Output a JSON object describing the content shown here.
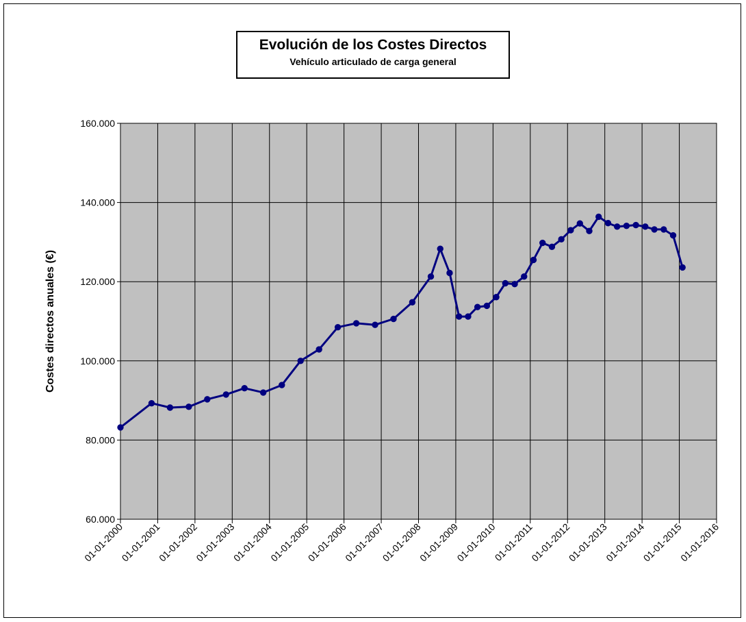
{
  "chart_data": {
    "type": "line",
    "title": "Evolución de los Costes Directos",
    "subtitle": "Vehículo articulado de carga general",
    "xlabel": "",
    "ylabel": "Costes directos anuales (€)",
    "ylim": [
      60000,
      160000
    ],
    "yticks": [
      60000,
      80000,
      100000,
      120000,
      140000,
      160000
    ],
    "ytick_labels": [
      "60.000",
      "80.000",
      "100.000",
      "120.000",
      "140.000",
      "160.000"
    ],
    "xlim": [
      "2000-01-01",
      "2016-01-01"
    ],
    "xtick_labels": [
      "01-01-2000",
      "01-01-2001",
      "01-01-2002",
      "01-01-2003",
      "01-01-2004",
      "01-01-2005",
      "01-01-2006",
      "01-01-2007",
      "01-01-2008",
      "01-01-2009",
      "01-01-2010",
      "01-01-2011",
      "01-01-2012",
      "01-01-2013",
      "01-01-2014",
      "01-01-2015",
      "01-01-2016"
    ],
    "grid": true,
    "series": [
      {
        "color": "#000080",
        "points": [
          {
            "x": "2000-01-01",
            "y": 83200
          },
          {
            "x": "2000-11-01",
            "y": 89300
          },
          {
            "x": "2001-05-01",
            "y": 88200
          },
          {
            "x": "2001-11-01",
            "y": 88400
          },
          {
            "x": "2002-05-01",
            "y": 90300
          },
          {
            "x": "2002-11-01",
            "y": 91500
          },
          {
            "x": "2003-05-01",
            "y": 93100
          },
          {
            "x": "2003-11-01",
            "y": 92000
          },
          {
            "x": "2004-05-01",
            "y": 93900
          },
          {
            "x": "2004-11-01",
            "y": 100000
          },
          {
            "x": "2005-05-01",
            "y": 102900
          },
          {
            "x": "2005-11-01",
            "y": 108500
          },
          {
            "x": "2006-05-01",
            "y": 109500
          },
          {
            "x": "2006-11-01",
            "y": 109100
          },
          {
            "x": "2007-05-01",
            "y": 110600
          },
          {
            "x": "2007-11-01",
            "y": 114800
          },
          {
            "x": "2008-05-01",
            "y": 121300
          },
          {
            "x": "2008-08-01",
            "y": 128300
          },
          {
            "x": "2008-11-01",
            "y": 122200
          },
          {
            "x": "2009-02-01",
            "y": 111200
          },
          {
            "x": "2009-05-01",
            "y": 111200
          },
          {
            "x": "2009-08-01",
            "y": 113600
          },
          {
            "x": "2009-11-01",
            "y": 113900
          },
          {
            "x": "2010-02-01",
            "y": 116100
          },
          {
            "x": "2010-05-01",
            "y": 119600
          },
          {
            "x": "2010-08-01",
            "y": 119400
          },
          {
            "x": "2010-11-01",
            "y": 121300
          },
          {
            "x": "2011-02-01",
            "y": 125500
          },
          {
            "x": "2011-05-01",
            "y": 129800
          },
          {
            "x": "2011-08-01",
            "y": 128800
          },
          {
            "x": "2011-11-01",
            "y": 130700
          },
          {
            "x": "2012-02-01",
            "y": 133000
          },
          {
            "x": "2012-05-01",
            "y": 134700
          },
          {
            "x": "2012-08-01",
            "y": 132800
          },
          {
            "x": "2012-11-01",
            "y": 136400
          },
          {
            "x": "2013-02-01",
            "y": 134800
          },
          {
            "x": "2013-05-01",
            "y": 133900
          },
          {
            "x": "2013-08-01",
            "y": 134100
          },
          {
            "x": "2013-11-01",
            "y": 134300
          },
          {
            "x": "2014-02-01",
            "y": 133900
          },
          {
            "x": "2014-05-01",
            "y": 133200
          },
          {
            "x": "2014-08-01",
            "y": 133200
          },
          {
            "x": "2014-11-01",
            "y": 131700
          },
          {
            "x": "2015-02-01",
            "y": 123600
          }
        ]
      }
    ],
    "colors": {
      "plot_background": "#c0c0c0",
      "line": "#000080",
      "grid": "#000000"
    }
  }
}
